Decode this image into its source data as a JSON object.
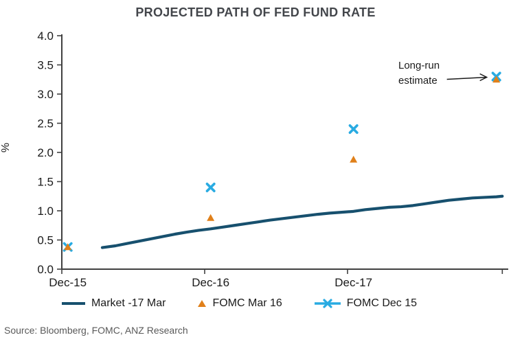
{
  "figure": {
    "title": "PROJECTED PATH OF FED FUND RATE",
    "source": "Source: Bloomberg, FOMC, ANZ Research",
    "y_axis_unit": "%"
  },
  "colors": {
    "market_line": "#17506e",
    "fomc_mar16": "#e0801a",
    "fomc_dec15": "#29abe2",
    "title_text": "#43464b",
    "axis": "#404040",
    "tick_text": "#1a1a1a",
    "annotation_text": "#1a1a1a",
    "source_text": "#595959"
  },
  "annotation": {
    "line1": "Long-run",
    "line2": "estimate"
  },
  "legend": [
    {
      "label": "Market -17 Mar",
      "swatch": "line"
    },
    {
      "label": "FOMC Mar 16",
      "swatch": "triangle"
    },
    {
      "label": "FOMC Dec 15",
      "swatch": "line-x"
    }
  ],
  "chart_data": {
    "type": "line",
    "title": "PROJECTED PATH OF FED FUND RATE",
    "xlabel": "",
    "ylabel": "%",
    "ylim": [
      0.0,
      4.0
    ],
    "ytick_step": 0.5,
    "x_unit": "months_after_dec_2015",
    "xticks": [
      {
        "label": "Dec-15",
        "month": 0
      },
      {
        "label": "Dec-16",
        "month": 12
      },
      {
        "label": "Dec-17",
        "month": 24
      },
      {
        "label": "",
        "month": 37
      }
    ],
    "grid": false,
    "legend_position": "bottom",
    "series": [
      {
        "name": "Market -17 Mar",
        "type": "line",
        "marker": "none",
        "color": "#17506e",
        "z": 1,
        "points": [
          [
            2.9,
            0.37
          ],
          [
            4,
            0.4
          ],
          [
            5,
            0.44
          ],
          [
            6,
            0.48
          ],
          [
            7,
            0.52
          ],
          [
            8,
            0.56
          ],
          [
            9,
            0.6
          ],
          [
            10,
            0.635
          ],
          [
            11,
            0.665
          ],
          [
            12,
            0.69
          ],
          [
            13,
            0.72
          ],
          [
            14,
            0.75
          ],
          [
            15,
            0.78
          ],
          [
            16,
            0.81
          ],
          [
            17,
            0.84
          ],
          [
            18,
            0.865
          ],
          [
            19,
            0.89
          ],
          [
            20,
            0.915
          ],
          [
            21,
            0.94
          ],
          [
            22,
            0.96
          ],
          [
            23,
            0.975
          ],
          [
            24,
            0.99
          ],
          [
            25,
            1.02
          ],
          [
            26,
            1.04
          ],
          [
            27,
            1.06
          ],
          [
            28,
            1.07
          ],
          [
            29,
            1.09
          ],
          [
            30,
            1.12
          ],
          [
            31,
            1.15
          ],
          [
            32,
            1.18
          ],
          [
            33,
            1.2
          ],
          [
            34,
            1.22
          ],
          [
            35,
            1.23
          ],
          [
            36,
            1.24
          ],
          [
            36.5,
            1.25
          ]
        ]
      },
      {
        "name": "FOMC Dec 15",
        "type": "scatter",
        "marker": "x",
        "color": "#29abe2",
        "z": 2,
        "points": [
          [
            0,
            0.38
          ],
          [
            12,
            1.4
          ],
          [
            24,
            2.4
          ],
          [
            36,
            3.3
          ]
        ]
      },
      {
        "name": "FOMC Mar 16",
        "type": "scatter",
        "marker": "triangle",
        "color": "#e0801a",
        "z": 3,
        "points": [
          [
            0,
            0.38
          ],
          [
            12,
            0.88
          ],
          [
            24,
            1.88
          ],
          [
            36,
            3.25
          ]
        ]
      }
    ],
    "annotation": {
      "text": [
        "Long-run",
        "estimate"
      ],
      "points_to": "long-run FOMC estimates at far right"
    }
  }
}
